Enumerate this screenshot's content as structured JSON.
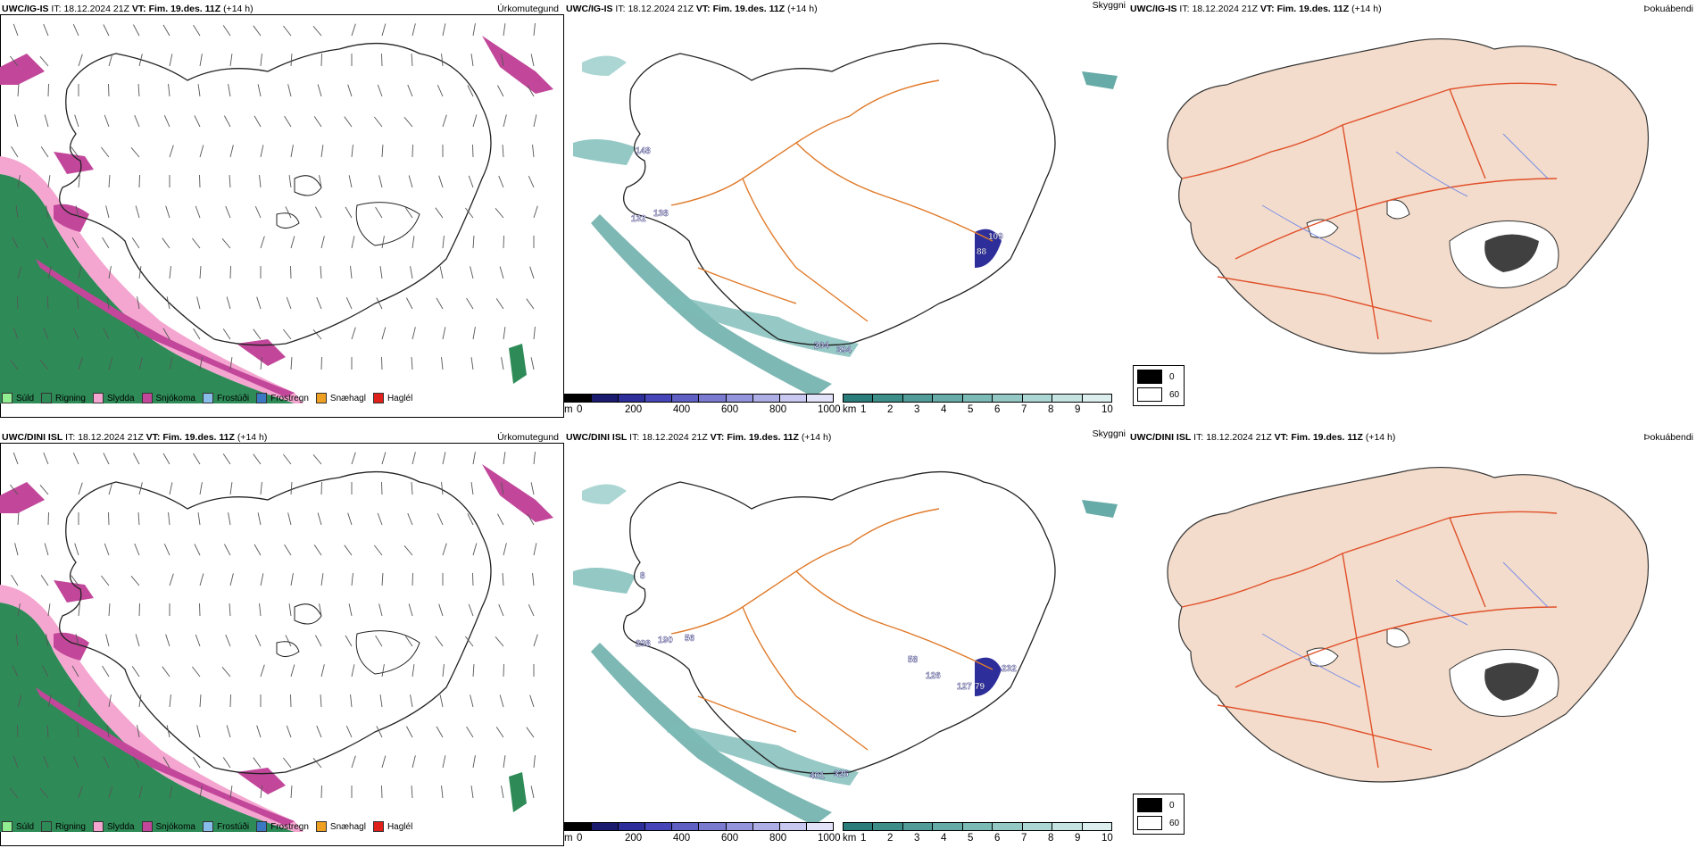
{
  "rows": [
    {
      "model": "UWC/IG-IS",
      "it_label": "IT:",
      "it_value": "18.12.2024 21Z",
      "vt_label": "VT:",
      "vt_value": "Fim. 19.des. 11Z",
      "lead": "(+14 h)",
      "precip_labels": [],
      "ceiling_labels": [
        "148",
        "132",
        "138",
        "109",
        "88",
        "204",
        "394"
      ]
    },
    {
      "model": "UWC/DINI ISL",
      "it_label": "IT:",
      "it_value": "18.12.2024 21Z",
      "vt_label": "VT:",
      "vt_value": "Fim. 19.des. 11Z",
      "lead": "(+14 h)",
      "precip_labels": [],
      "ceiling_labels": [
        "8",
        "298",
        "190",
        "56",
        "58",
        "126",
        "232",
        "127",
        "79",
        "401",
        "326"
      ]
    }
  ],
  "panel_titles": {
    "precip": "Úrkomutegund",
    "ceiling": "Skyggni",
    "fog": "Þokuábendi"
  },
  "precip_legend": [
    {
      "label": "Súld",
      "color": "#90ee90"
    },
    {
      "label": "Rigning",
      "color": "#2e8b57"
    },
    {
      "label": "Slydda",
      "color": "#f4a6d0"
    },
    {
      "label": "Snjókoma",
      "color": "#c2479a"
    },
    {
      "label": "Frostúði",
      "color": "#87bde8"
    },
    {
      "label": "Frostregn",
      "color": "#3a78c2"
    },
    {
      "label": "Snæhagl",
      "color": "#f0a020"
    },
    {
      "label": "Haglél",
      "color": "#e0201a"
    }
  ],
  "ceiling_scale": {
    "unit": "m",
    "ticks": [
      "0",
      "200",
      "400",
      "600",
      "800",
      "1000"
    ],
    "colors": [
      "#000000",
      "#1a1a6e",
      "#2e2e9a",
      "#4646b8",
      "#6060c4",
      "#7a7ad0",
      "#9494dc",
      "#aeaee6",
      "#c8c8f0",
      "#e2e2f8"
    ]
  },
  "visibility_scale": {
    "unit": "km",
    "ticks": [
      "1",
      "2",
      "3",
      "4",
      "5",
      "6",
      "7",
      "8",
      "9",
      "10"
    ],
    "colors": [
      "#2a7d7a",
      "#3d8d89",
      "#519c98",
      "#66aba7",
      "#7cbab6",
      "#93c8c5",
      "#abd6d3",
      "#c4e3e1",
      "#dcefee"
    ]
  },
  "fog_legend": [
    {
      "label": "0",
      "color": "#000000"
    },
    {
      "label": "60",
      "color": "#ffffff"
    }
  ]
}
